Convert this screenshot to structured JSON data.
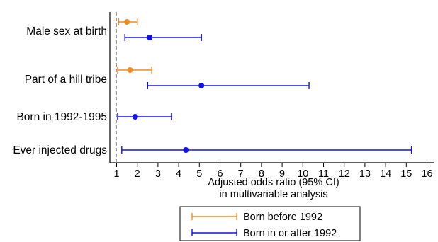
{
  "chart_data": {
    "type": "forest",
    "xlabel": [
      "Adjusted odds ratio (95% CI)",
      "in multivariable analysis"
    ],
    "xlim": [
      0.95,
      16.2
    ],
    "xticks": [
      1,
      2,
      3,
      4,
      5,
      6,
      7,
      8,
      9,
      10,
      11,
      12,
      13,
      14,
      15,
      16
    ],
    "reference_line": 1,
    "grid": false,
    "legend_position": "bottom-center",
    "categories": [
      "Male sex at birth",
      "Part of a hill tribe",
      "Born in 1992-1995",
      "Ever injected drugs"
    ],
    "series": [
      {
        "name": "Born before 1992",
        "color": "#f28a1e",
        "points": [
          {
            "category": "Male sex at birth",
            "estimate": 1.5,
            "lower": 1.1,
            "upper": 2.0
          },
          {
            "category": "Part of a hill tribe",
            "estimate": 1.65,
            "lower": 1.05,
            "upper": 2.7
          }
        ]
      },
      {
        "name": "Born in or after 1992",
        "color": "#1010ee",
        "points": [
          {
            "category": "Male sex at birth",
            "estimate": 2.6,
            "lower": 1.4,
            "upper": 5.1
          },
          {
            "category": "Part of a hill tribe",
            "estimate": 5.1,
            "lower": 2.5,
            "upper": 10.3
          },
          {
            "category": "Born in 1992-1995",
            "estimate": 1.9,
            "lower": 1.05,
            "upper": 3.65
          },
          {
            "category": "Ever injected drugs",
            "estimate": 4.35,
            "lower": 1.25,
            "upper": 15.25
          }
        ]
      }
    ]
  }
}
